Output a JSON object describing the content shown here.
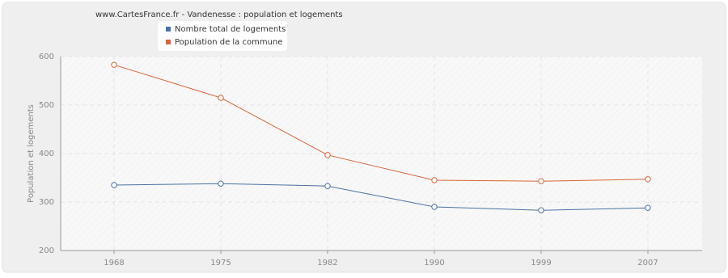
{
  "chart_data": {
    "type": "line",
    "title": "www.CartesFrance.fr - Vandenesse : population et logements",
    "y_label": "Population et logements",
    "categories": [
      "1968",
      "1975",
      "1982",
      "1990",
      "1999",
      "2007"
    ],
    "series": [
      {
        "name": "Nombre total de logements",
        "color": "#4a72a3",
        "values": [
          335,
          338,
          333,
          290,
          283,
          288
        ]
      },
      {
        "name": "Population de la commune",
        "color": "#d9643a",
        "values": [
          583,
          515,
          397,
          345,
          343,
          347
        ]
      }
    ],
    "ylim": [
      200,
      600
    ],
    "yticks": [
      200,
      300,
      400,
      500,
      600
    ],
    "grid": true
  }
}
